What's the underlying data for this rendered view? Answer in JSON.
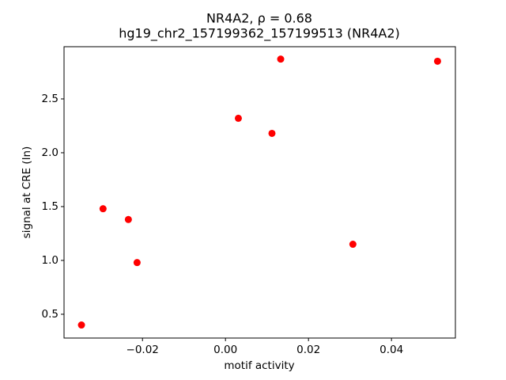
{
  "chart_data": {
    "type": "scatter",
    "title": "NR4A2, ρ = 0.68",
    "subtitle": "hg19_chr2_157199362_157199513 (NR4A2)",
    "x_label": "motif activity",
    "y_label": "signal at CRE (ln)",
    "x": [
      -0.0347,
      -0.0295,
      -0.0234,
      -0.0213,
      0.0031,
      0.0112,
      0.0133,
      0.0307,
      0.0511
    ],
    "values": [
      0.4,
      1.48,
      1.38,
      0.98,
      2.32,
      2.18,
      2.87,
      1.15,
      2.85
    ],
    "color": "#ff0000",
    "xlim": [
      -0.0389,
      0.0554
    ],
    "ylim": [
      0.279,
      2.985
    ],
    "xticks": [
      {
        "value": -0.02,
        "label": "−0.02"
      },
      {
        "value": 0,
        "label": "0.00"
      },
      0.02,
      0.04
    ],
    "yticks": [
      0.5,
      {
        "value": 1,
        "label": "1.0"
      },
      1.5,
      {
        "value": 2,
        "label": "2.0"
      },
      2.5
    ],
    "grid": false
  }
}
